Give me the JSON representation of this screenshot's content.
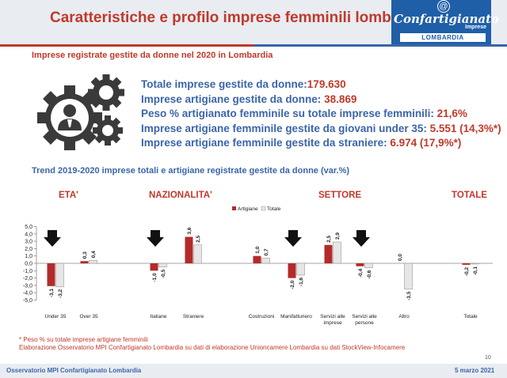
{
  "header": {
    "title": "Caratteristiche e profilo imprese femminili lombarde",
    "logo_name": "Confartigianato",
    "logo_sub": "Imprese",
    "logo_region": "LOMBARDIA",
    "logo_at": "@"
  },
  "subtitle": "Imprese registrate gestite da donne nel 2020 in Lombardia",
  "stats": [
    {
      "label": "Totale imprese gestite da donne:",
      "value": "179.630"
    },
    {
      "label": "Imprese artigiane gestite da donne: ",
      "value": "38.869"
    },
    {
      "label": "Peso % artigianato femminile su totale imprese femminili: ",
      "value": "21,6%"
    },
    {
      "label": "Imprese artigiane femminile gestite da giovani under 35: ",
      "value": "5.551 (14,3%*)"
    },
    {
      "label": "Imprese artigiane femminile gestite da straniere: ",
      "value": "6.974 (17,9%*)"
    }
  ],
  "trend_title": "Trend 2019-2020 imprese totali e artigiane registrate gestite da donne (var.%)",
  "groups": [
    "ETA'",
    "NAZIONALITA'",
    "SETTORE",
    "TOTALE"
  ],
  "chart_data": {
    "type": "bar",
    "categories": [
      "Under 35",
      "Over 35",
      "Italiane",
      "Straniere",
      "Costruzioni",
      "Manifatturiero",
      "Servizi alle imprese",
      "Servizi alle persone",
      "Altro",
      "Totale"
    ],
    "series": [
      {
        "name": "Artigiane",
        "values": [
          -3.1,
          0.3,
          -1.0,
          3.6,
          1.0,
          -2.0,
          2.5,
          -0.4,
          0.0,
          -0.2
        ]
      },
      {
        "name": "Totale",
        "values": [
          -3.2,
          0.4,
          -0.5,
          2.5,
          0.7,
          -1.6,
          2.9,
          -0.6,
          -3.5,
          -0.1
        ]
      }
    ],
    "value_labels": [
      [
        "-3,1",
        "0,3",
        "-1,0",
        "3,6",
        "1,0",
        "-2,0",
        "2,5",
        "-0,4",
        "0,0",
        "-0,2"
      ],
      [
        "-3,2",
        "0,4",
        "-0,5",
        "2,5",
        "0,7",
        "-1,6",
        "2,9",
        "-0,6",
        "-3,5",
        "-0,1"
      ]
    ],
    "y_ticks": [
      "5,0",
      "4,0",
      "3,0",
      "2,0",
      "1,0",
      "0,0",
      "-1,0",
      "-2,0",
      "-3,0",
      "-4,0",
      "-5,0"
    ],
    "ylim": [
      -5,
      5
    ],
    "legend_position": "top-center",
    "colors": {
      "Artigiane": "#b42a2a",
      "Totale": "#e6e6e6"
    },
    "arrows_above": [
      "Under 35",
      "Italiane",
      "Manifatturiero",
      "Servizi alle persone"
    ]
  },
  "footnote1": "* Peso % su totale imprese artigiane femminili",
  "footnote2": "Elaborazione Osservatorio MPI Confartigianato Lombardia su dati di elaborazione Unioncamere Lombardia su dati StockView-Infocamere",
  "page_number": "10",
  "footer": {
    "left": "Osservatorio MPI Confartigianato Lombardia",
    "right": "5 marzo 2021"
  },
  "colors": {
    "accent_red": "#c0392b",
    "accent_blue": "#3a65a9",
    "logo_blue": "#1f5fa8"
  }
}
